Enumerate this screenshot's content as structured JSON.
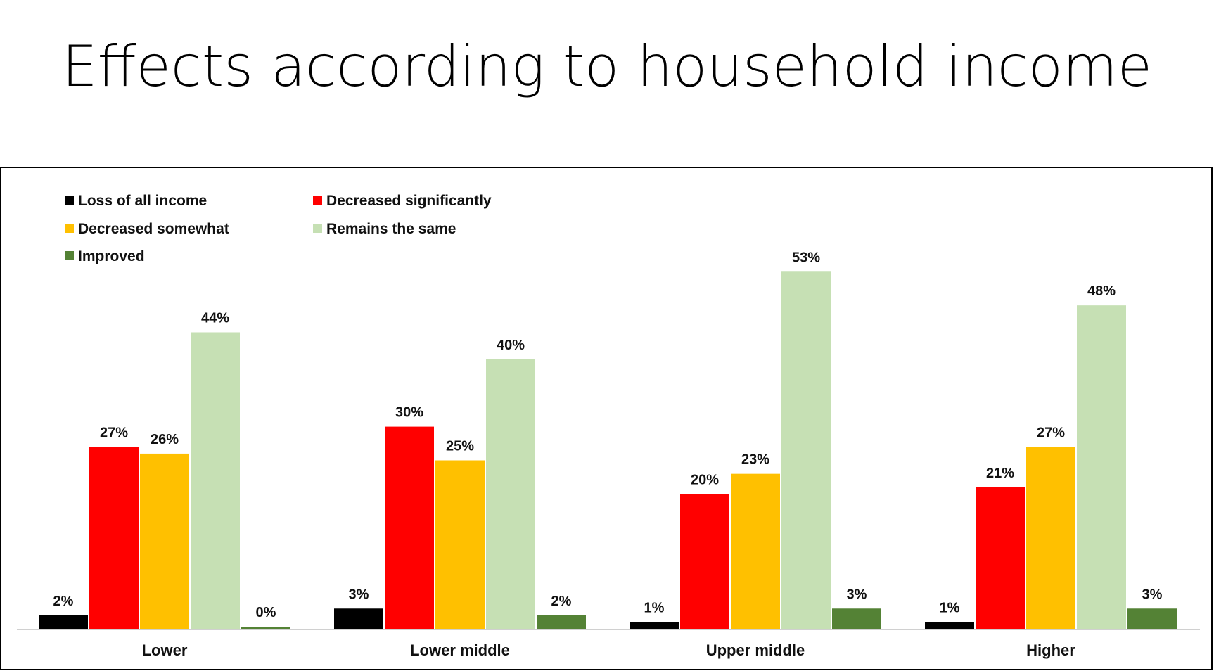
{
  "title": "Effects according to household income",
  "colors": {
    "loss": "#000000",
    "dec_sig": "#ff0000",
    "dec_some": "#ffc000",
    "same": "#c6e0b4",
    "improved": "#548235",
    "axis": "#d0d0d0"
  },
  "chart_data": {
    "type": "bar",
    "title": "Effects according to household income",
    "xlabel": "",
    "ylabel": "",
    "ylim": [
      0,
      60
    ],
    "grid": false,
    "legend_position": "top-left",
    "categories": [
      "Lower",
      "Lower middle",
      "Upper middle",
      "Higher"
    ],
    "series": [
      {
        "name": "Loss of all income",
        "color": "#000000",
        "values": [
          2,
          3,
          1,
          1
        ],
        "labels": [
          "2%",
          "3%",
          "1%",
          "1%"
        ]
      },
      {
        "name": "Decreased significantly",
        "color": "#ff0000",
        "values": [
          27,
          30,
          20,
          21
        ],
        "labels": [
          "27%",
          "30%",
          "20%",
          "21%"
        ]
      },
      {
        "name": "Decreased somewhat",
        "color": "#ffc000",
        "values": [
          26,
          25,
          23,
          27
        ],
        "labels": [
          "26%",
          "25%",
          "23%",
          "27%"
        ]
      },
      {
        "name": "Remains the same",
        "color": "#c6e0b4",
        "values": [
          44,
          40,
          53,
          48
        ],
        "labels": [
          "44%",
          "40%",
          "53%",
          "48%"
        ]
      },
      {
        "name": "Improved",
        "color": "#548235",
        "values": [
          0.3,
          2,
          3,
          3
        ],
        "labels": [
          "0%",
          "2%",
          "3%",
          "3%"
        ]
      }
    ]
  }
}
